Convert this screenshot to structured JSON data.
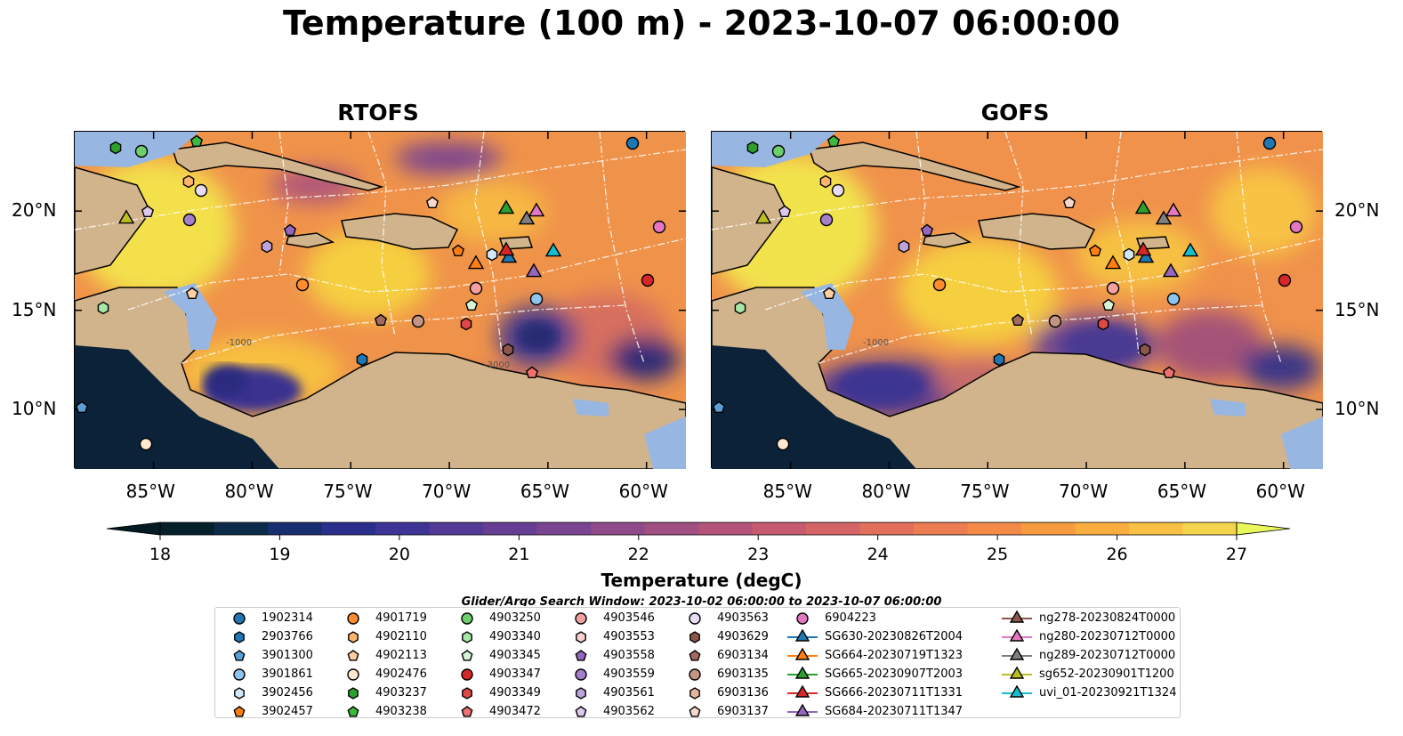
{
  "title": "Temperature (100 m) - 2023-10-07 06:00:00",
  "panels": [
    {
      "title": "RTOFS"
    },
    {
      "title": "GOFS"
    }
  ],
  "map": {
    "lon_ticks": [
      "85°W",
      "80°W",
      "75°W",
      "70°W",
      "65°W",
      "60°W"
    ],
    "lat_ticks": [
      "20°N",
      "15°N",
      "10°N"
    ],
    "extent": {
      "lon": [
        -89,
        -58
      ],
      "lat": [
        7,
        24
      ]
    },
    "land_color": "#d2b48c",
    "shelf_color": "#97b6e1"
  },
  "colorbar": {
    "label": "Temperature (degC)",
    "ticks": [
      "18",
      "19",
      "20",
      "21",
      "22",
      "23",
      "24",
      "25",
      "26",
      "27"
    ],
    "range": [
      18,
      27
    ],
    "cmap": "thermal"
  },
  "search_window": "Glider/Argo Search Window: 2023-10-02 06:00:00 to 2023-10-07 06:00:00",
  "legend": [
    [
      {
        "label": "1902314",
        "marker": "circle",
        "color": "#1f77b4"
      },
      {
        "label": "2903766",
        "marker": "hexagon",
        "color": "#1f77b4"
      },
      {
        "label": "3901300",
        "marker": "pentagon",
        "color": "#5aa0d6"
      },
      {
        "label": "3901861",
        "marker": "circle",
        "color": "#8ec4f0"
      },
      {
        "label": "3902456",
        "marker": "hexagon",
        "color": "#cfe8fb"
      },
      {
        "label": "3902457",
        "marker": "pentagon",
        "color": "#ff7f0e"
      }
    ],
    [
      {
        "label": "4901719",
        "marker": "circle",
        "color": "#ff8c2e"
      },
      {
        "label": "4902110",
        "marker": "hexagon",
        "color": "#ffb36b"
      },
      {
        "label": "4902113",
        "marker": "pentagon",
        "color": "#ffcfa0"
      },
      {
        "label": "4902476",
        "marker": "circle",
        "color": "#ffe8d0"
      },
      {
        "label": "4903237",
        "marker": "hexagon",
        "color": "#2ca02c"
      },
      {
        "label": "4903238",
        "marker": "pentagon",
        "color": "#3cb83c"
      }
    ],
    [
      {
        "label": "4903250",
        "marker": "circle",
        "color": "#6ccf6c"
      },
      {
        "label": "4903340",
        "marker": "hexagon",
        "color": "#a6e6a6"
      },
      {
        "label": "4903345",
        "marker": "pentagon",
        "color": "#d6f5d6"
      },
      {
        "label": "4903347",
        "marker": "circle",
        "color": "#d62728"
      },
      {
        "label": "4903349",
        "marker": "hexagon",
        "color": "#e04848"
      },
      {
        "label": "4903472",
        "marker": "pentagon",
        "color": "#ee7070"
      }
    ],
    [
      {
        "label": "4903546",
        "marker": "circle",
        "color": "#f4a0a0"
      },
      {
        "label": "4903553",
        "marker": "hexagon",
        "color": "#fad0d0"
      },
      {
        "label": "4903558",
        "marker": "pentagon",
        "color": "#9467bd"
      },
      {
        "label": "4903559",
        "marker": "circle",
        "color": "#a57fcb"
      },
      {
        "label": "4903561",
        "marker": "hexagon",
        "color": "#bfa2dc"
      },
      {
        "label": "4903562",
        "marker": "pentagon",
        "color": "#dcc8ee"
      }
    ],
    [
      {
        "label": "4903563",
        "marker": "circle",
        "color": "#e8dcf5"
      },
      {
        "label": "4903629",
        "marker": "hexagon",
        "color": "#8c564b"
      },
      {
        "label": "6903134",
        "marker": "pentagon",
        "color": "#a36b5e"
      },
      {
        "label": "6903135",
        "marker": "circle",
        "color": "#c49585"
      },
      {
        "label": "6903136",
        "marker": "hexagon",
        "color": "#e8b4a2"
      },
      {
        "label": "6903137",
        "marker": "pentagon",
        "color": "#f8d8cc"
      }
    ],
    [
      {
        "label": "6904223",
        "marker": "circle",
        "color": "#e377c2"
      },
      {
        "label": "SG630-20230826T2004",
        "marker": "triangle",
        "color": "#1f77b4"
      },
      {
        "label": "SG664-20230719T1323",
        "marker": "triangle",
        "color": "#ff7f0e"
      },
      {
        "label": "SG665-20230907T2003",
        "marker": "triangle",
        "color": "#2ca02c"
      },
      {
        "label": "SG666-20230711T1331",
        "marker": "triangle",
        "color": "#d62728"
      },
      {
        "label": "SG684-20230711T1347",
        "marker": "triangle",
        "color": "#9467bd"
      }
    ],
    [
      {
        "label": "ng278-20230824T0000",
        "marker": "triangle",
        "color": "#8c564b"
      },
      {
        "label": "ng280-20230712T0000",
        "marker": "triangle",
        "color": "#e377c2"
      },
      {
        "label": "ng289-20230712T0000",
        "marker": "triangle",
        "color": "#7f7f7f"
      },
      {
        "label": "sg652-20230901T1200",
        "marker": "triangle",
        "color": "#bcbd22"
      },
      {
        "label": "uvi_01-20230921T1324",
        "marker": "triangle",
        "color": "#17becf"
      }
    ]
  ]
}
